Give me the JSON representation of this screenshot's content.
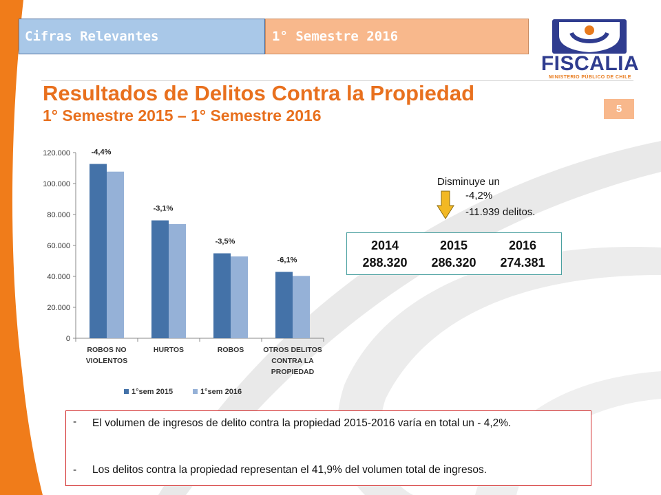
{
  "header": {
    "left_label": "Cifras Relevantes",
    "right_label": "1° Semestre 2016"
  },
  "logo": {
    "name": "FISCALIA",
    "tagline": "MINISTERIO PÚBLICO DE CHILE"
  },
  "title": "Resultados de Delitos Contra la Propiedad",
  "subtitle": "1° Semestre 2015 – 1° Semestre 2016",
  "page_number": "5",
  "colors": {
    "series_2015": "#4472a8",
    "series_2016": "#95b1d7",
    "accent": "#e8701e",
    "arrow": "#f2b824"
  },
  "chart_data": {
    "type": "bar",
    "categories": [
      "ROBOS NO VIOLENTOS",
      "HURTOS",
      "ROBOS",
      "OTROS DELITOS CONTRA LA PROPIEDAD"
    ],
    "series": [
      {
        "name": "1°sem 2015",
        "values": [
          112700,
          76200,
          54900,
          42900
        ]
      },
      {
        "name": "1°sem 2016",
        "values": [
          107700,
          73800,
          52900,
          40300
        ]
      }
    ],
    "bar_labels": [
      "-4,4%",
      "-3,1%",
      "-3,5%",
      "-6,1%"
    ],
    "ylim": [
      0,
      120000
    ],
    "yticks": [
      "0",
      "20.000",
      "40.000",
      "60.000",
      "80.000",
      "100.000",
      "120.000"
    ],
    "legend_position": "bottom",
    "grid": false
  },
  "note": {
    "line1": "Disminuye un",
    "line2": "-4,2%",
    "line3": "-11.939 delitos."
  },
  "totals": {
    "years": [
      "2014",
      "2015",
      "2016"
    ],
    "values": [
      "288.320",
      "286.320",
      "274.381"
    ]
  },
  "bullets": {
    "dash": "-",
    "item1": "El volumen de ingresos de delito contra la propiedad 2015-2016 varía en total un - 4,2%.",
    "item2": "Los delitos contra la propiedad representan el 41,9% del volumen total de ingresos."
  }
}
